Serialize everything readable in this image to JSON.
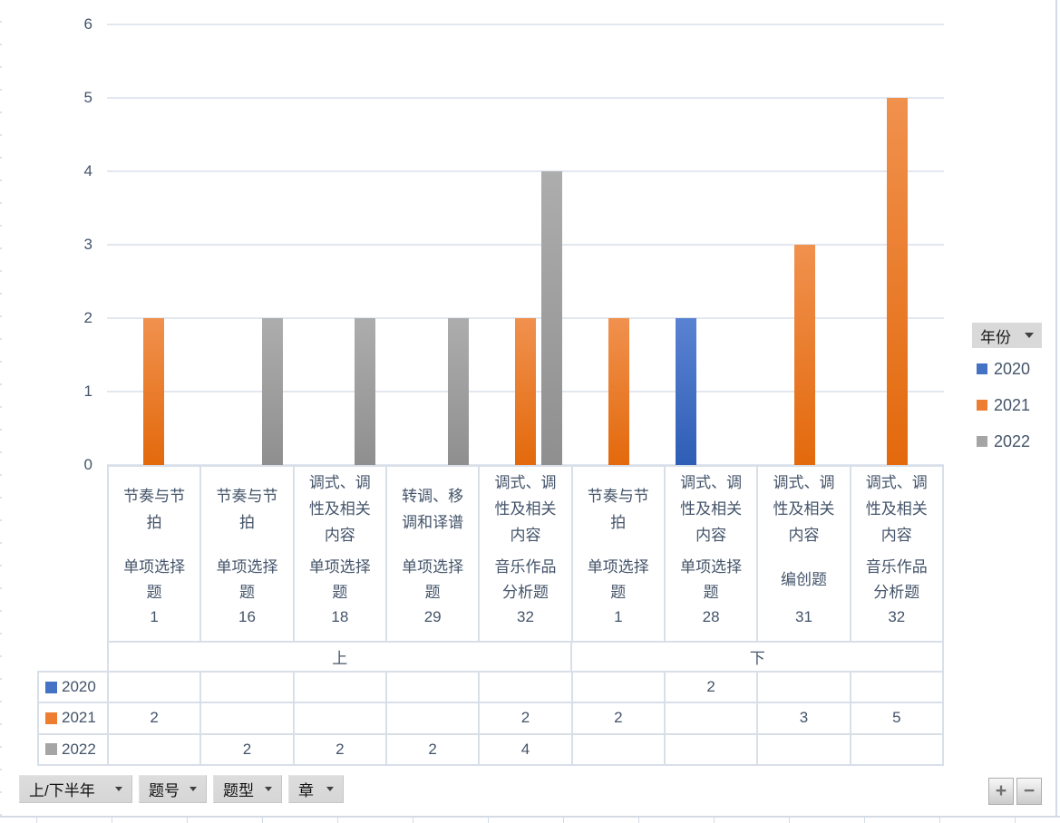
{
  "chart_data": {
    "type": "bar",
    "title": "",
    "xlabel": "",
    "ylabel": "",
    "ylim": [
      0,
      6
    ],
    "ytick_values": [
      0,
      1,
      2,
      3,
      4,
      5,
      6
    ],
    "grid": true,
    "legend_position": "right",
    "legend_title": "年份",
    "categories": [
      {
        "chapter": "节奏与节\n拍",
        "qtype": "单项选择\n题",
        "qnum": "1",
        "group": "上"
      },
      {
        "chapter": "节奏与节\n拍",
        "qtype": "单项选择\n题",
        "qnum": "16",
        "group": "上"
      },
      {
        "chapter": "调式、调\n性及相关\n内容",
        "qtype": "单项选择\n题",
        "qnum": "18",
        "group": "上"
      },
      {
        "chapter": "转调、移\n调和译谱",
        "qtype": "单项选择\n题",
        "qnum": "29",
        "group": "上"
      },
      {
        "chapter": "调式、调\n性及相关\n内容",
        "qtype": "音乐作品\n分析题",
        "qnum": "32",
        "group": "上"
      },
      {
        "chapter": "节奏与节\n拍",
        "qtype": "单项选择\n题",
        "qnum": "1",
        "group": "下"
      },
      {
        "chapter": "调式、调\n性及相关\n内容",
        "qtype": "单项选择\n题",
        "qnum": "28",
        "group": "下"
      },
      {
        "chapter": "调式、调\n性及相关\n内容",
        "qtype": "编创题",
        "qnum": "31",
        "group": "下"
      },
      {
        "chapter": "调式、调\n性及相关\n内容",
        "qtype": "音乐作品\n分析题",
        "qnum": "32",
        "group": "下"
      }
    ],
    "groups": [
      {
        "label": "上",
        "span": 5
      },
      {
        "label": "下",
        "span": 4
      }
    ],
    "series": [
      {
        "name": "2020",
        "color": "#4472C4",
        "values": [
          null,
          null,
          null,
          null,
          null,
          null,
          2,
          null,
          null
        ]
      },
      {
        "name": "2021",
        "color": "#ED7D31",
        "values": [
          2,
          null,
          null,
          null,
          2,
          2,
          null,
          3,
          5
        ]
      },
      {
        "name": "2022",
        "color": "#A5A5A5",
        "values": [
          null,
          2,
          2,
          2,
          4,
          null,
          null,
          null,
          null
        ]
      }
    ]
  },
  "legend": {
    "title": "年份",
    "items": [
      {
        "label": "2020",
        "color": "#4472C4"
      },
      {
        "label": "2021",
        "color": "#ED7D31"
      },
      {
        "label": "2022",
        "color": "#A5A5A5"
      }
    ]
  },
  "field_buttons": [
    {
      "label": "上/下半年"
    },
    {
      "label": "题号"
    },
    {
      "label": "题型"
    },
    {
      "label": "章"
    }
  ],
  "expand_buttons": {
    "plus_label": "+",
    "minus_label": "−"
  }
}
